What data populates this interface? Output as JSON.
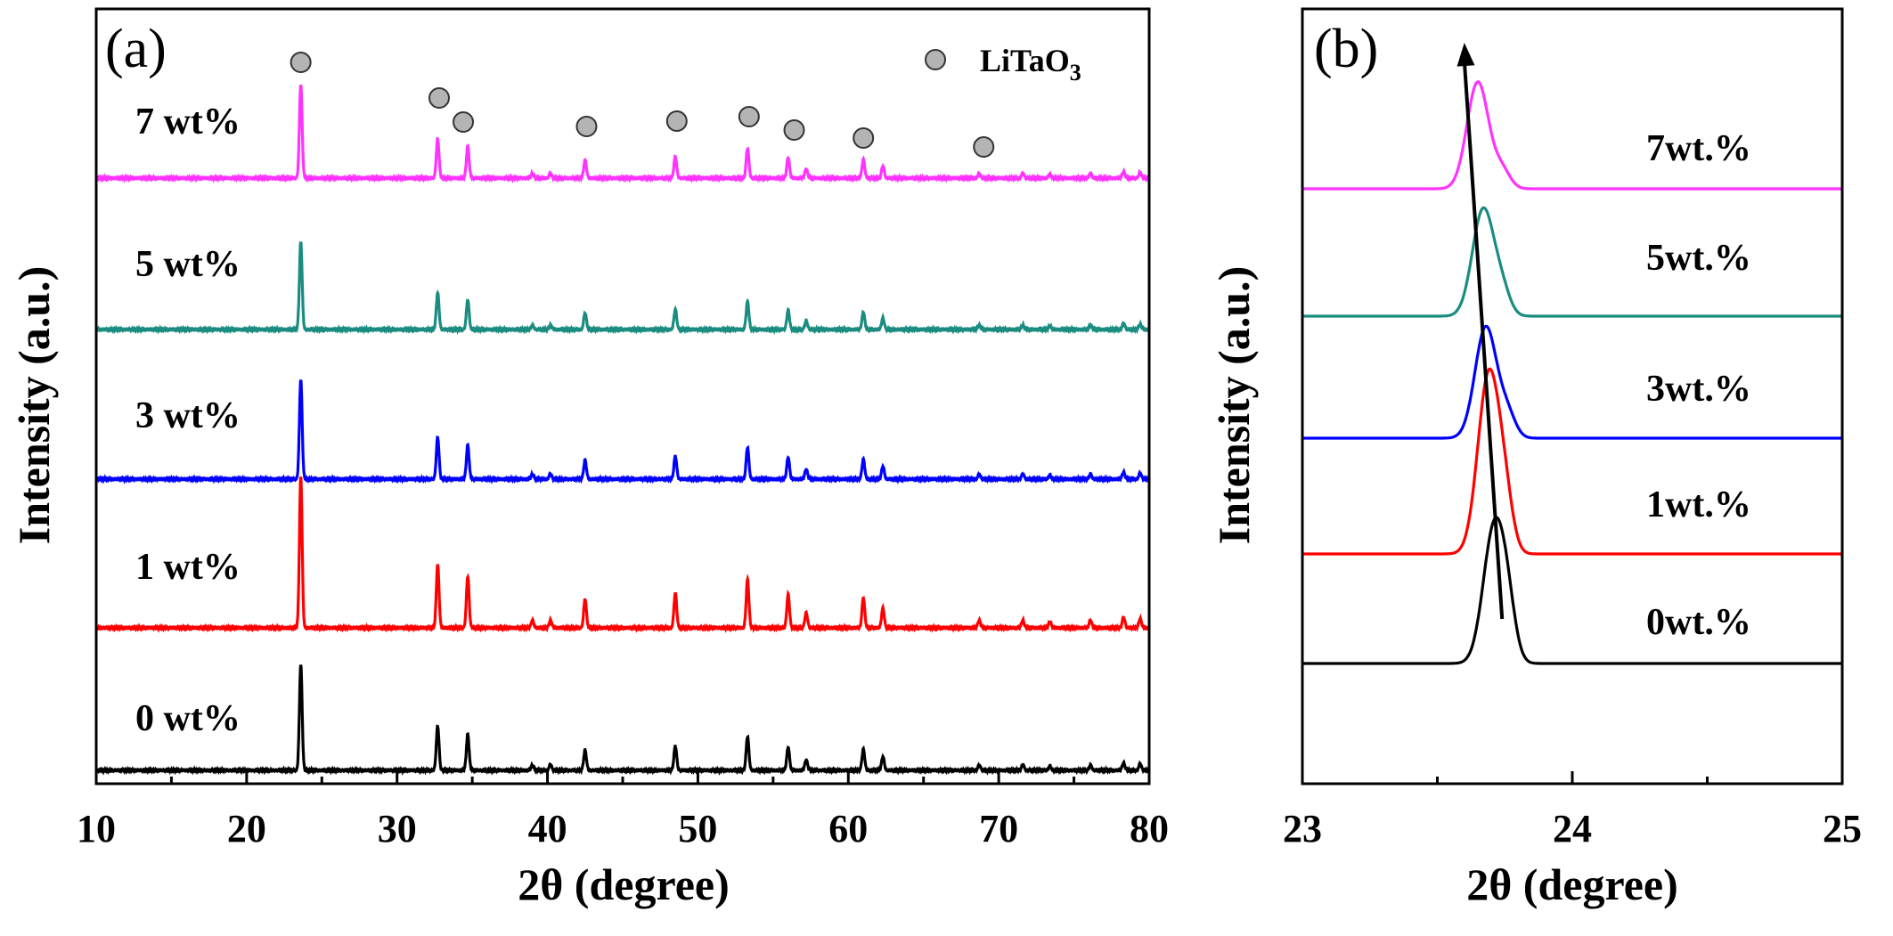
{
  "chart_data": [
    {
      "panel_label": "(a)",
      "type": "line",
      "xlabel": "2θ (degree)",
      "ylabel": "Intensity (a.u.)",
      "xlim": [
        10,
        80
      ],
      "xticks": [
        "10",
        "20",
        "30",
        "40",
        "50",
        "60",
        "70",
        "80"
      ],
      "y_ticks_shown": false,
      "legend": {
        "marker": "grey circle",
        "label_main": "LiTaO",
        "label_sub": "3",
        "placement": "top-right"
      },
      "phase_markers_2theta": [
        23.6,
        32.8,
        34.4,
        42.6,
        48.6,
        53.4,
        56.4,
        61.0,
        69.0
      ],
      "peaks": [
        {
          "x": 23.6,
          "h": 1.0
        },
        {
          "x": 32.7,
          "h": 0.42
        },
        {
          "x": 34.7,
          "h": 0.34
        },
        {
          "x": 39.0,
          "h": 0.05
        },
        {
          "x": 40.2,
          "h": 0.05
        },
        {
          "x": 42.5,
          "h": 0.19
        },
        {
          "x": 48.5,
          "h": 0.23
        },
        {
          "x": 53.3,
          "h": 0.32
        },
        {
          "x": 56.0,
          "h": 0.22
        },
        {
          "x": 57.2,
          "h": 0.1
        },
        {
          "x": 61.0,
          "h": 0.2
        },
        {
          "x": 62.3,
          "h": 0.13
        },
        {
          "x": 68.7,
          "h": 0.05
        },
        {
          "x": 71.6,
          "h": 0.05
        },
        {
          "x": 73.4,
          "h": 0.04
        },
        {
          "x": 76.1,
          "h": 0.05
        },
        {
          "x": 78.3,
          "h": 0.07
        },
        {
          "x": 79.4,
          "h": 0.06
        }
      ],
      "series": [
        {
          "name": "0 wt%",
          "color": "#000000",
          "offset": 0.0,
          "scale": 0.7
        },
        {
          "name": "1 wt%",
          "color": "#ff0000",
          "offset": 1.02,
          "scale": 1.0
        },
        {
          "name": "3 wt%",
          "color": "#0000ff",
          "offset": 2.0,
          "scale": 0.66
        },
        {
          "name": "5 wt%",
          "color": "#1a8c80",
          "offset": 3.0,
          "scale": 0.58
        },
        {
          "name": "7 wt%",
          "color": "#ff33ff",
          "offset": 4.0,
          "scale": 0.62
        }
      ]
    },
    {
      "panel_label": "(b)",
      "type": "line",
      "xlabel": "2θ (degree)",
      "ylabel": "Intensity (a.u.)",
      "xlim": [
        23,
        25
      ],
      "xticks": [
        "23",
        "24",
        "25"
      ],
      "y_ticks_shown": false,
      "arrow": {
        "from_x": 23.74,
        "to_x": 23.6
      },
      "series": [
        {
          "name": "0wt.%",
          "color": "#000000",
          "offset": 0.0,
          "peak_x": 23.71,
          "height": 0.6,
          "shoulder_x": 23.76,
          "shoulder_h": 0.18
        },
        {
          "name": "1wt.%",
          "color": "#ff0000",
          "offset": 0.6,
          "peak_x": 23.69,
          "height": 0.8,
          "shoulder_x": 23.75,
          "shoulder_h": 0.2
        },
        {
          "name": "3wt.%",
          "color": "#0000ff",
          "offset": 1.3,
          "peak_x": 23.68,
          "height": 0.5,
          "shoulder_x": 23.76,
          "shoulder_h": 0.1
        },
        {
          "name": "5wt.%",
          "color": "#1a8c80",
          "offset": 1.95,
          "peak_x": 23.67,
          "height": 0.48,
          "shoulder_x": 23.74,
          "shoulder_h": 0.1
        },
        {
          "name": "7wt.%",
          "color": "#ff33ff",
          "offset": 2.6,
          "peak_x": 23.65,
          "height": 0.48,
          "shoulder_x": 23.74,
          "shoulder_h": 0.08
        }
      ]
    }
  ]
}
